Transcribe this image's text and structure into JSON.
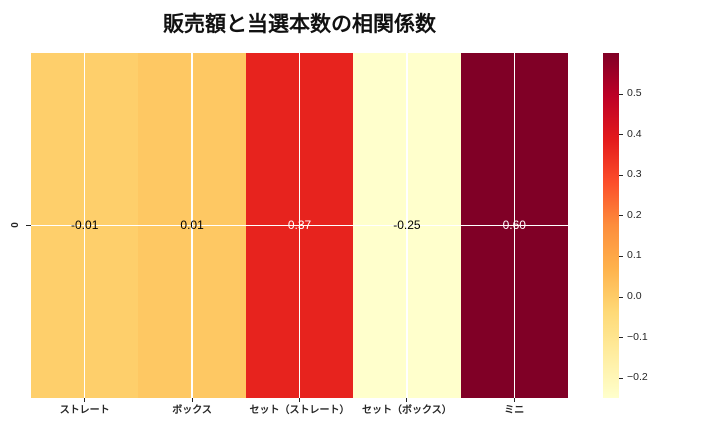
{
  "figure": {
    "background": "#ffffff",
    "title": "販売額と当選本数の相関係数"
  },
  "chart_data": {
    "type": "heatmap",
    "title": "販売額と当選本数の相関係数",
    "columns": [
      "ストレート",
      "ボックス",
      "セット（ストレート）",
      "セット（ボックス）",
      "ミニ"
    ],
    "rows": [
      "0"
    ],
    "values": [
      [
        -0.01,
        0.01,
        0.37,
        -0.25,
        0.6
      ]
    ],
    "cell_labels": [
      [
        "-0.01",
        "0.01",
        "0.37",
        "-0.25",
        "0.60"
      ]
    ],
    "cell_colors": [
      [
        "#FECF6B",
        "#FEC863",
        "#E7231E",
        "#FFFFCC",
        "#800026"
      ]
    ],
    "cell_text_colors": [
      [
        "#000000",
        "#000000",
        "#FFFFFF",
        "#000000",
        "#FFFFFF"
      ]
    ],
    "colormap": "YlOrRd",
    "vmin": -0.25,
    "vmax": 0.6,
    "grid": true,
    "grid_color": "#FFFFFF",
    "colorbar": {
      "position": "right",
      "tick_labels": [
        "0.5",
        "0.4",
        "0.3",
        "0.2",
        "0.1",
        "0.0",
        "−0.1",
        "−0.2"
      ],
      "tick_values": [
        0.5,
        0.4,
        0.3,
        0.2,
        0.1,
        0.0,
        -0.1,
        -0.2
      ],
      "gradient_top_to_bottom": [
        "#800026",
        "#BD0026",
        "#E31A1C",
        "#FC4E2A",
        "#FD8D3C",
        "#FEB24C",
        "#FED976",
        "#FFEDA0",
        "#FFFFCC"
      ]
    }
  }
}
